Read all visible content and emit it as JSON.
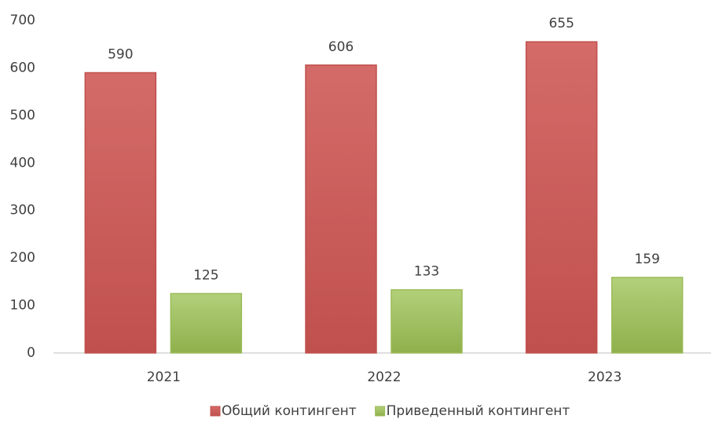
{
  "chart_data": {
    "type": "bar",
    "categories": [
      "2021",
      "2022",
      "2023"
    ],
    "series": [
      {
        "name": "Общий контингент",
        "color": "#c0504d",
        "values": [
          590,
          606,
          655
        ]
      },
      {
        "name": "Приведенный контингент",
        "color": "#9bbb59",
        "values": [
          125,
          133,
          159
        ]
      }
    ],
    "ylim": [
      0,
      700
    ],
    "yticks": [
      0,
      100,
      200,
      300,
      400,
      500,
      600,
      700
    ],
    "grid": false,
    "legend": "bottom"
  }
}
